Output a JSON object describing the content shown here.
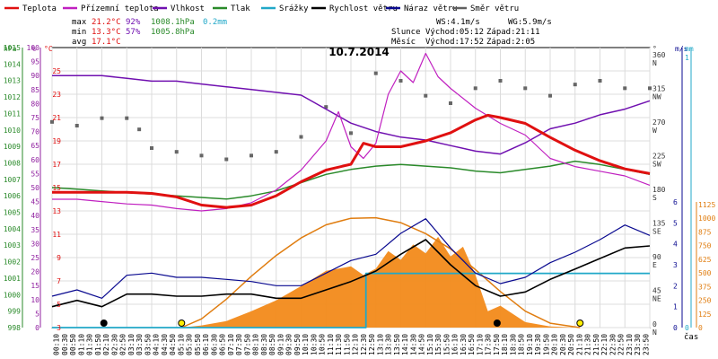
{
  "chart_data": {
    "type": "line",
    "title": "10.7.2014",
    "x_axis_label": "čas",
    "time_labels": [
      "00:10",
      "00:30",
      "00:50",
      "01:10",
      "01:30",
      "01:50",
      "02:10",
      "02:30",
      "02:50",
      "03:10",
      "03:30",
      "03:50",
      "04:10",
      "04:30",
      "04:50",
      "05:10",
      "05:30",
      "05:50",
      "06:10",
      "06:30",
      "06:50",
      "07:10",
      "07:30",
      "07:50",
      "08:10",
      "08:30",
      "08:50",
      "09:10",
      "09:30",
      "09:50",
      "10:10",
      "10:30",
      "10:50",
      "11:10",
      "11:30",
      "11:50",
      "12:10",
      "12:30",
      "12:50",
      "13:10",
      "13:30",
      "13:50",
      "14:10",
      "14:30",
      "14:50",
      "15:10",
      "15:30",
      "15:50",
      "16:10",
      "16:30",
      "16:50",
      "17:10",
      "17:30",
      "17:50",
      "18:10",
      "18:30",
      "18:50",
      "19:10",
      "19:30",
      "19:50",
      "20:10",
      "20:30",
      "20:50",
      "21:10",
      "21:30",
      "21:50",
      "22:10",
      "22:30",
      "22:50",
      "23:10",
      "23:30",
      "23:50"
    ],
    "legend": [
      {
        "name": "Teplota",
        "color": "#e01010"
      },
      {
        "name": "Přízemní teplota",
        "color": "#c020c0"
      },
      {
        "name": "Vlhkost",
        "color": "#7010b0"
      },
      {
        "name": "Tlak",
        "color": "#2a8a2a"
      },
      {
        "name": "Srážky",
        "color": "#20a8c8"
      },
      {
        "name": "Rychlost větru",
        "color": "#000000"
      },
      {
        "name": "Náraz větru",
        "color": "#0a0a90"
      },
      {
        "name": "Směr větru",
        "color": "#606060"
      }
    ],
    "stats": {
      "max_label": "max",
      "max_temp": "21.2°C",
      "max_hum": "92%",
      "max_pres": "1008.1hPa",
      "rain": "0.2mm",
      "min_label": "min",
      "min_temp": "13.3°C",
      "min_hum": "57%",
      "min_pres": "1005.8hPa",
      "avg_label": "avg",
      "avg_temp": "17.1°C",
      "ws": "WS:4.1m/s",
      "wg": "WG:5.9m/s",
      "sun_label": "Slunce",
      "sun_rise": "Východ:05:12",
      "sun_set": "Západ:21:11",
      "moon_label": "Měsíc",
      "moon_rise": "Východ:17:52",
      "moon_set": "Západ:2:05"
    },
    "axes": {
      "hpa": {
        "unit": "hPa",
        "min": 998,
        "max": 1015,
        "ticks": [
          998,
          999,
          1000,
          1001,
          1002,
          1003,
          1004,
          1005,
          1006,
          1007,
          1008,
          1009,
          1010,
          1011,
          1012,
          1013,
          1014,
          1015
        ]
      },
      "percent": {
        "unit": "%",
        "min": 0,
        "max": 100,
        "ticks": [
          0,
          5,
          10,
          15,
          20,
          25,
          30,
          35,
          40,
          45,
          50,
          55,
          60,
          65,
          70,
          75,
          80,
          85,
          90,
          95,
          100
        ]
      },
      "celsius": {
        "unit": "°C",
        "min": 3,
        "max": 27,
        "ticks": [
          3,
          5,
          7,
          9,
          11,
          13,
          15,
          17,
          19,
          21,
          23,
          25
        ]
      },
      "direction": {
        "unit": "°",
        "min": 0,
        "max": 360,
        "ticks": [
          {
            "value": 0,
            "label": "0",
            "compass": "N"
          },
          {
            "value": 45,
            "label": "45",
            "compass": "NE"
          },
          {
            "value": 90,
            "label": "90",
            "compass": "E"
          },
          {
            "value": 135,
            "label": "135",
            "compass": "SE"
          },
          {
            "value": 180,
            "label": "180",
            "compass": "S"
          },
          {
            "value": 225,
            "label": "225",
            "compass": "SW"
          },
          {
            "value": 270,
            "label": "270",
            "compass": "W"
          },
          {
            "value": 315,
            "label": "315",
            "compass": "NW"
          },
          {
            "value": 360,
            "label": "360",
            "compass": "N"
          }
        ]
      },
      "wind": {
        "unit": "m/s",
        "min": 0,
        "max": 6,
        "ticks": [
          0,
          1,
          2,
          3,
          4,
          5,
          6
        ]
      },
      "rain": {
        "unit": "mm",
        "min": 0,
        "max": 1,
        "ticks": [
          0,
          1
        ]
      },
      "solar": {
        "min": 0,
        "max": 1125,
        "ticks": [
          0,
          125,
          250,
          375,
          500,
          625,
          750,
          875,
          1000,
          1125
        ]
      }
    },
    "series": {
      "temperature": {
        "x": [
          0,
          1,
          2,
          3,
          4,
          5,
          6,
          7,
          8,
          9,
          10,
          11,
          12,
          12.5,
          13,
          14,
          15,
          16,
          17,
          17.5,
          18,
          19,
          20,
          21,
          22,
          23,
          24
        ],
        "y": [
          14.6,
          14.6,
          14.6,
          14.6,
          14.5,
          14.2,
          13.5,
          13.3,
          13.5,
          14.3,
          15.5,
          16.5,
          17.0,
          18.8,
          18.5,
          18.5,
          19.0,
          19.7,
          20.8,
          21.2,
          21.0,
          20.5,
          19.3,
          18.2,
          17.3,
          16.6,
          16.2
        ]
      },
      "ground_temperature": {
        "x": [
          0,
          1,
          2,
          3,
          4,
          5,
          6,
          7,
          8,
          9,
          10,
          11,
          11.5,
          12,
          12.5,
          13,
          13.5,
          14,
          14.5,
          15,
          15.5,
          16,
          17,
          18,
          19,
          20,
          21,
          22,
          23,
          24
        ],
        "y": [
          14.0,
          14.0,
          13.8,
          13.6,
          13.5,
          13.2,
          13.0,
          13.2,
          13.7,
          14.8,
          16.5,
          19.0,
          21.5,
          18.5,
          17.5,
          18.8,
          23.0,
          25.0,
          24.0,
          26.5,
          24.5,
          23.5,
          21.8,
          20.5,
          19.5,
          17.5,
          16.8,
          16.4,
          16.0,
          15.2
        ]
      },
      "humidity": {
        "x": [
          0,
          1,
          2,
          3,
          4,
          5,
          6,
          7,
          8,
          9,
          10,
          11,
          12,
          13,
          14,
          15,
          16,
          17,
          18,
          19,
          20,
          21,
          22,
          23,
          24
        ],
        "y": [
          90,
          90,
          90,
          89,
          88,
          88,
          87,
          86,
          85,
          84,
          83,
          78,
          73,
          70,
          68,
          67,
          65,
          63,
          62,
          66,
          71,
          73,
          76,
          78,
          81
        ]
      },
      "pressure": {
        "x": [
          0,
          1,
          2,
          3,
          4,
          5,
          6,
          7,
          8,
          9,
          10,
          11,
          12,
          13,
          14,
          15,
          16,
          17,
          18,
          19,
          20,
          21,
          22,
          23,
          24
        ],
        "y": [
          1006.5,
          1006.4,
          1006.3,
          1006.2,
          1006.1,
          1006.0,
          1005.9,
          1005.8,
          1006.0,
          1006.3,
          1006.8,
          1007.3,
          1007.6,
          1007.8,
          1007.9,
          1007.8,
          1007.7,
          1007.5,
          1007.4,
          1007.6,
          1007.8,
          1008.1,
          1007.9,
          1007.6,
          1007.3
        ]
      },
      "rain_total": {
        "x": [
          0,
          12.6,
          12.6,
          24
        ],
        "y": [
          0,
          0,
          0.2,
          0.2
        ]
      },
      "wind_speed": {
        "x": [
          0,
          1,
          2,
          3,
          4,
          5,
          6,
          7,
          8,
          9,
          10,
          11,
          12,
          13,
          14,
          15,
          16,
          17,
          18,
          19,
          20,
          21,
          22,
          23,
          24
        ],
        "y": [
          1.0,
          1.3,
          1.0,
          1.6,
          1.6,
          1.5,
          1.5,
          1.6,
          1.6,
          1.4,
          1.4,
          1.8,
          2.2,
          2.7,
          3.5,
          4.2,
          3.0,
          2.0,
          1.5,
          1.7,
          2.3,
          2.8,
          3.3,
          3.8,
          3.9
        ]
      },
      "wind_gust": {
        "x": [
          0,
          1,
          2,
          3,
          4,
          5,
          6,
          7,
          8,
          9,
          10,
          11,
          12,
          13,
          14,
          15,
          16,
          17,
          18,
          19,
          20,
          21,
          22,
          23,
          24
        ],
        "y": [
          1.5,
          1.8,
          1.4,
          2.5,
          2.6,
          2.4,
          2.4,
          2.3,
          2.2,
          2.0,
          2.0,
          2.6,
          3.2,
          3.5,
          4.5,
          5.2,
          3.8,
          2.6,
          2.1,
          2.4,
          3.1,
          3.6,
          4.2,
          4.9,
          4.4
        ]
      },
      "wind_direction": {
        "x": [
          0,
          1,
          2,
          3,
          3.5,
          4,
          5,
          6,
          7,
          8,
          9,
          10,
          11,
          12,
          13,
          14,
          15,
          16,
          17,
          18,
          19,
          20,
          21,
          22,
          23,
          24
        ],
        "y": [
          275,
          270,
          280,
          280,
          265,
          240,
          235,
          230,
          225,
          230,
          235,
          255,
          295,
          260,
          340,
          330,
          310,
          300,
          320,
          330,
          320,
          310,
          325,
          330,
          320,
          320
        ]
      },
      "solar_radiation": {
        "x": [
          5.2,
          6,
          7,
          8,
          9,
          10,
          11,
          12,
          12.5,
          13,
          13.5,
          14,
          14.5,
          15,
          15.5,
          16,
          16.5,
          17,
          17.5,
          18,
          19,
          20,
          21.2
        ],
        "y": [
          0,
          20,
          60,
          150,
          250,
          380,
          520,
          560,
          480,
          540,
          700,
          620,
          760,
          680,
          830,
          650,
          740,
          480,
          150,
          200,
          50,
          10,
          0
        ]
      },
      "solar_theoretical": {
        "x": [
          5.2,
          6,
          7,
          8,
          9,
          10,
          11,
          12,
          13,
          14,
          15,
          16,
          17,
          18,
          19,
          20,
          21.2
        ],
        "y": [
          0,
          80,
          260,
          470,
          660,
          820,
          940,
          1000,
          1005,
          960,
          860,
          720,
          530,
          330,
          150,
          40,
          0
        ]
      }
    },
    "markers": {
      "sunrise_time": 5.2,
      "sunset_time": 21.2,
      "moonrise_time": 17.87,
      "moonset_time": 2.08
    }
  }
}
